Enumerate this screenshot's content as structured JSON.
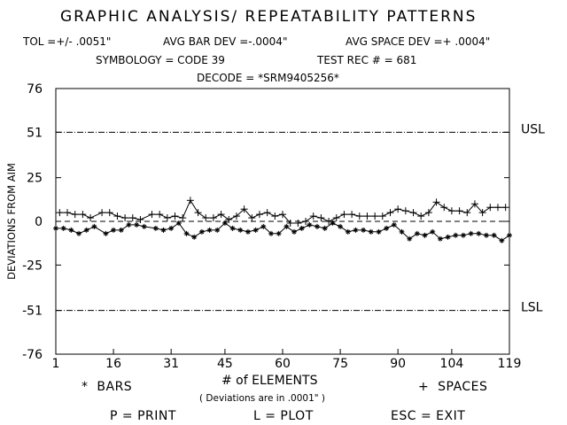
{
  "header": {
    "title": "GRAPHIC ANALYSIS/ REPEATABILITY PATTERNS",
    "line2_tol": "TOL =+/- .0051\"",
    "line2_bar": "AVG BAR DEV =-.0004\"",
    "line2_space": "AVG SPACE DEV =+ .0004\"",
    "line3_symbology": "SYMBOLOGY = CODE 39",
    "line3_test": "TEST REC # = 681",
    "line4_decode": "DECODE = *SRM9405256*"
  },
  "footer": {
    "bars_legend": "*  BARS",
    "spaces_legend": "+  SPACES",
    "print_key": "P = PRINT",
    "plot_key": "L = PLOT",
    "exit_key": "ESC = EXIT"
  },
  "chart_data": {
    "type": "line",
    "xlabel": "# of ELEMENTS",
    "xlabel_note": "( Deviations are in .0001\" )",
    "ylabel": "DEVIATIONS FROM AIM",
    "xlim": [
      1,
      119
    ],
    "ylim": [
      -76,
      76
    ],
    "x_ticks": [
      "1",
      "16",
      "31",
      "45",
      "60",
      "75",
      "90",
      "104",
      "119"
    ],
    "y_ticks": [
      "76",
      "51",
      "25",
      "0",
      "-25",
      "-51",
      "-76"
    ],
    "usl": 51,
    "lsl": -51,
    "usl_label": "USL",
    "lsl_label": "LSL",
    "grid": false,
    "series": [
      {
        "name": "SPACES",
        "marker": "+",
        "x": [
          2,
          4,
          6,
          8,
          10,
          13,
          15,
          17,
          19,
          21,
          23,
          26,
          28,
          30,
          32,
          34,
          36,
          38,
          40,
          42,
          44,
          46,
          48,
          50,
          52,
          54,
          56,
          58,
          60,
          62,
          64,
          66,
          68,
          70,
          72,
          74,
          76,
          78,
          80,
          82,
          84,
          86,
          88,
          90,
          92,
          94,
          96,
          98,
          100,
          102,
          104,
          106,
          108,
          110,
          112,
          114,
          116,
          118
        ],
        "values": [
          5,
          5,
          4,
          4,
          2,
          5,
          5,
          3,
          2,
          2,
          1,
          4,
          4,
          2,
          3,
          2,
          12,
          5,
          2,
          2,
          4,
          1,
          3,
          7,
          2,
          4,
          5,
          3,
          4,
          -1,
          -1,
          0,
          3,
          2,
          0,
          2,
          4,
          4,
          3,
          3,
          3,
          3,
          5,
          7,
          6,
          5,
          3,
          5,
          11,
          8,
          6,
          6,
          5,
          10,
          5,
          8,
          8,
          8
        ]
      },
      {
        "name": "BARS",
        "marker": "*",
        "x": [
          1,
          3,
          5,
          7,
          9,
          11,
          14,
          16,
          18,
          20,
          22,
          24,
          27,
          29,
          31,
          33,
          35,
          37,
          39,
          41,
          43,
          45,
          47,
          49,
          51,
          53,
          55,
          57,
          59,
          61,
          63,
          65,
          67,
          69,
          71,
          73,
          75,
          77,
          79,
          81,
          83,
          85,
          87,
          89,
          91,
          93,
          95,
          97,
          99,
          101,
          103,
          105,
          107,
          109,
          111,
          113,
          115,
          117,
          119
        ],
        "values": [
          -4,
          -4,
          -5,
          -7,
          -5,
          -3,
          -7,
          -5,
          -5,
          -2,
          -2,
          -3,
          -4,
          -5,
          -4,
          -1,
          -7,
          -9,
          -6,
          -5,
          -5,
          -1,
          -4,
          -5,
          -6,
          -5,
          -3,
          -7,
          -7,
          -3,
          -6,
          -4,
          -2,
          -3,
          -4,
          -1,
          -3,
          -6,
          -5,
          -5,
          -6,
          -6,
          -4,
          -2,
          -6,
          -10,
          -7,
          -8,
          -6,
          -10,
          -9,
          -8,
          -8,
          -7,
          -7,
          -8,
          -8,
          -11,
          -8
        ]
      }
    ]
  }
}
